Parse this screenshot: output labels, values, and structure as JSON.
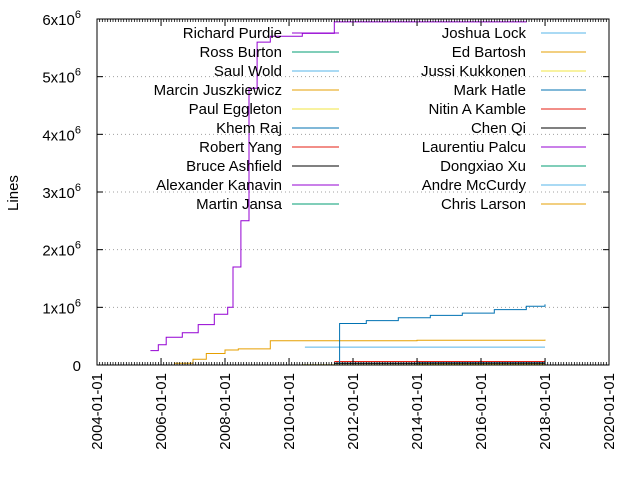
{
  "chart_data": {
    "type": "line",
    "title": "",
    "xlabel": "",
    "ylabel": "Lines",
    "x_axis": {
      "ticks": [
        "2004-01-01",
        "2006-01-01",
        "2008-01-01",
        "2010-01-01",
        "2012-01-01",
        "2014-01-01",
        "2016-01-01",
        "2018-01-01",
        "2020-01-01"
      ],
      "range": [
        "2004-01-01",
        "2020-01-01"
      ]
    },
    "y_axis": {
      "ticks": [
        {
          "value": 0,
          "base": "0",
          "exp": ""
        },
        {
          "value": 1000000,
          "base": "1x10",
          "exp": "6"
        },
        {
          "value": 2000000,
          "base": "2x10",
          "exp": "6"
        },
        {
          "value": 3000000,
          "base": "3x10",
          "exp": "6"
        },
        {
          "value": 4000000,
          "base": "4x10",
          "exp": "6"
        },
        {
          "value": 5000000,
          "base": "5x10",
          "exp": "6"
        },
        {
          "value": 6000000,
          "base": "6x10",
          "exp": "6"
        }
      ],
      "range": [
        0,
        6000000
      ]
    },
    "grid": "horizontal dotted",
    "legend_placement": "top, two columns",
    "series": [
      {
        "name": "Richard Purdie",
        "color": "#9400d3",
        "points": [
          [
            "2005-09-01",
            250000
          ],
          [
            "2005-12-01",
            350000
          ],
          [
            "2006-03-01",
            480000
          ],
          [
            "2006-09-01",
            560000
          ],
          [
            "2007-03-01",
            700000
          ],
          [
            "2007-09-01",
            880000
          ],
          [
            "2008-02-01",
            1000000
          ],
          [
            "2008-04-01",
            1700000
          ],
          [
            "2008-07-01",
            2500000
          ],
          [
            "2008-10-01",
            4800000
          ],
          [
            "2009-01-01",
            5600000
          ],
          [
            "2009-06-01",
            5700000
          ],
          [
            "2010-06-01",
            5750000
          ],
          [
            "2011-06-01",
            5950000
          ],
          [
            "2013-01-01",
            5950000
          ],
          [
            "2015-01-01",
            5950000
          ],
          [
            "2017-06-01",
            5960000
          ]
        ]
      },
      {
        "name": "Ross Burton",
        "color": "#009e73",
        "points": []
      },
      {
        "name": "Saul Wold",
        "color": "#56b4e9",
        "points": [
          [
            "2010-07-01",
            310000
          ],
          [
            "2014-01-01",
            310000
          ],
          [
            "2016-01-01",
            310000
          ],
          [
            "2018-01-01",
            310000
          ]
        ]
      },
      {
        "name": "Marcin Juszkiewicz",
        "color": "#e69f00",
        "points": [
          [
            "2006-06-01",
            30000
          ],
          [
            "2007-01-01",
            100000
          ],
          [
            "2007-06-01",
            200000
          ],
          [
            "2008-01-01",
            260000
          ],
          [
            "2008-06-01",
            280000
          ],
          [
            "2009-06-01",
            420000
          ],
          [
            "2011-01-01",
            420000
          ],
          [
            "2014-01-01",
            430000
          ],
          [
            "2018-01-01",
            440000
          ]
        ]
      },
      {
        "name": "Paul Eggleton",
        "color": "#f0e442",
        "points": [
          [
            "2010-06-01",
            5000
          ],
          [
            "2014-01-01",
            10000
          ],
          [
            "2018-01-01",
            15000
          ]
        ]
      },
      {
        "name": "Khem Raj",
        "color": "#0072b2",
        "points": [
          [
            "2011-06-01",
            30000
          ],
          [
            "2014-01-01",
            40000
          ],
          [
            "2018-01-01",
            50000
          ]
        ]
      },
      {
        "name": "Robert Yang",
        "color": "#e51e10",
        "points": [
          [
            "2011-06-01",
            60000
          ],
          [
            "2014-01-01",
            60000
          ],
          [
            "2018-01-01",
            65000
          ]
        ]
      },
      {
        "name": "Bruce Ashfield",
        "color": "#000000",
        "points": [
          [
            "2011-06-01",
            30000
          ],
          [
            "2016-01-01",
            30000
          ],
          [
            "2018-01-01",
            30000
          ]
        ]
      },
      {
        "name": "Alexander Kanavin",
        "color": "#9400d3",
        "points": []
      },
      {
        "name": "Martin Jansa",
        "color": "#009e73",
        "points": []
      },
      {
        "name": "Joshua Lock",
        "color": "#56b4e9",
        "points": []
      },
      {
        "name": "Ed Bartosh",
        "color": "#e69f00",
        "points": []
      },
      {
        "name": "Jussi Kukkonen",
        "color": "#f0e442",
        "points": []
      },
      {
        "name": "Mark Hatle",
        "color": "#0072b2",
        "points": [
          [
            "2011-06-01",
            0
          ],
          [
            "2011-08-01",
            720000
          ],
          [
            "2012-06-01",
            770000
          ],
          [
            "2013-06-01",
            820000
          ],
          [
            "2014-06-01",
            860000
          ],
          [
            "2015-06-01",
            900000
          ],
          [
            "2016-06-01",
            960000
          ],
          [
            "2017-06-01",
            1020000
          ],
          [
            "2018-01-01",
            1050000
          ]
        ]
      },
      {
        "name": "Nitin A Kamble",
        "color": "#e51e10",
        "points": []
      },
      {
        "name": "Chen Qi",
        "color": "#000000",
        "points": []
      },
      {
        "name": "Laurentiu Palcu",
        "color": "#9400d3",
        "points": []
      },
      {
        "name": "Dongxiao Xu",
        "color": "#009e73",
        "points": []
      },
      {
        "name": "Andre McCurdy",
        "color": "#56b4e9",
        "points": []
      },
      {
        "name": "Chris Larson",
        "color": "#e69f00",
        "points": []
      }
    ]
  }
}
